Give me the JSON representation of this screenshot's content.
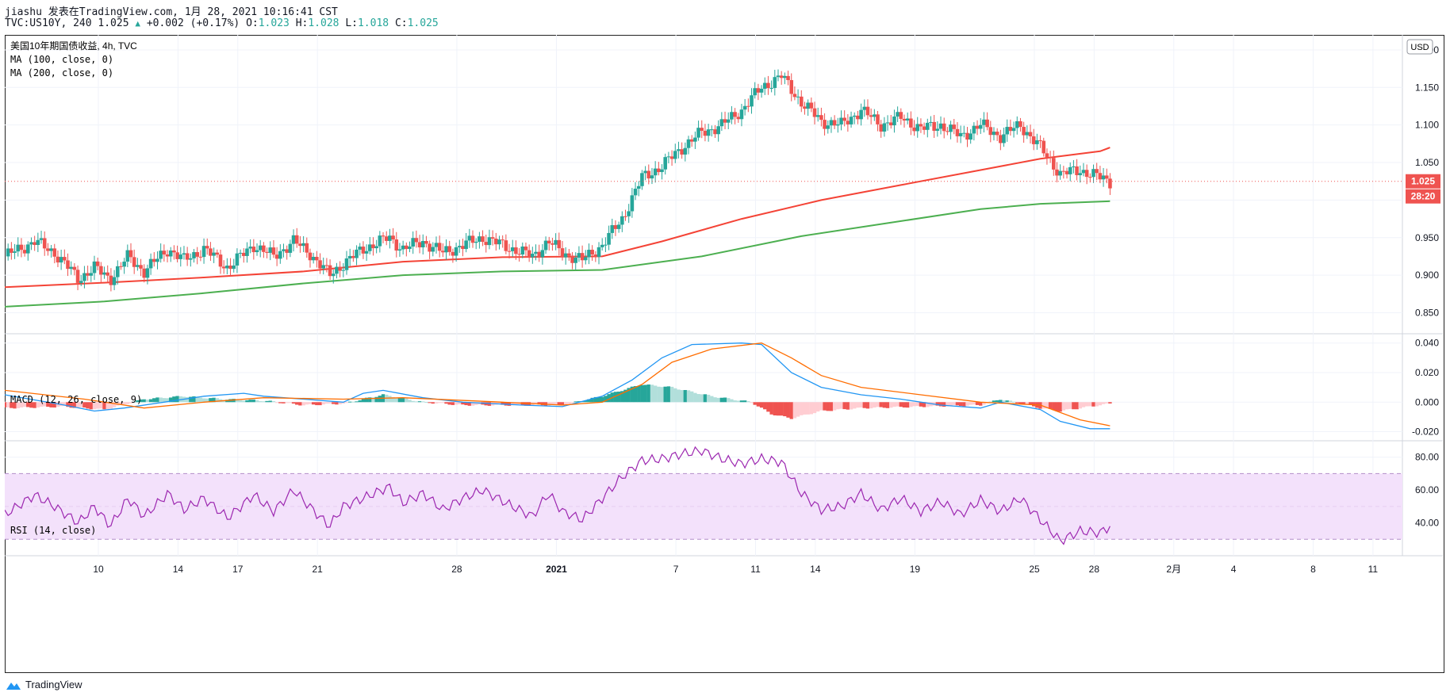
{
  "header": {
    "publish_line": "jiashu 发表在TradingView.com, 1月 28, 2021 10:16:41 CST",
    "symbol_prefix": "TVC:US10Y, 240 1.025",
    "change": "+0.002 (+0.17%)",
    "o_label": "O:",
    "o_value": "1.023",
    "h_label": "H:",
    "h_value": "1.028",
    "l_label": "L:",
    "l_value": "1.018",
    "c_label": "C:",
    "c_value": "1.025"
  },
  "legend": {
    "title": "美国10年期国债收益, 4h, TVC",
    "ma100": "MA (100, close, 0)",
    "ma200": "MA (200, close, 0)",
    "macd": "MACD (12, 26, close, 9)",
    "rsi": "RSI (14, close)"
  },
  "currency": "USD",
  "price_badge": "1.025",
  "countdown_badge": "28:20",
  "footer": {
    "brand": "TradingView"
  },
  "colors": {
    "up": "#26a69a",
    "down": "#ef5350",
    "ma100": "#f44336",
    "ma200": "#4caf50",
    "macd_line": "#2196f3",
    "signal_line": "#ff6d00",
    "rsi": "#9c27b0",
    "rsi_band": "#f3e1fb",
    "grid": "#f0f3fa"
  },
  "chart_data": [
    {
      "type": "candlestick",
      "title": "美国10年期国债收益, 4h, TVC",
      "y_ticks": [
        "0.850",
        "0.900",
        "0.950",
        "1.000",
        "1.050",
        "1.100",
        "1.150",
        "1.200"
      ],
      "ylim": [
        0.822,
        1.22
      ],
      "x_ticks": [
        {
          "label": "10",
          "t": 9.7
        },
        {
          "label": "14",
          "t": 13.7
        },
        {
          "label": "17",
          "t": 16.7
        },
        {
          "label": "21",
          "t": 20.7
        },
        {
          "label": "28",
          "t": 27.7
        },
        {
          "label": "2021",
          "t": 32.7
        },
        {
          "label": "7",
          "t": 38.7
        },
        {
          "label": "11",
          "t": 42.7
        },
        {
          "label": "14",
          "t": 45.7
        },
        {
          "label": "19",
          "t": 50.7
        },
        {
          "label": "25",
          "t": 56.7
        },
        {
          "label": "28",
          "t": 59.7
        },
        {
          "label": "2月",
          "t": 63.7
        },
        {
          "label": "4",
          "t": 66.7
        },
        {
          "label": "8",
          "t": 70.7
        },
        {
          "label": "11",
          "t": 73.7
        }
      ],
      "xlim": [
        5.0,
        75.1
      ],
      "close_waypoints": [
        [
          5.0,
          0.925
        ],
        [
          6.5,
          0.945
        ],
        [
          7.5,
          0.93
        ],
        [
          8.7,
          0.895
        ],
        [
          9.5,
          0.91
        ],
        [
          10.3,
          0.895
        ],
        [
          11.2,
          0.925
        ],
        [
          12.0,
          0.905
        ],
        [
          13.2,
          0.935
        ],
        [
          14.0,
          0.92
        ],
        [
          15.0,
          0.935
        ],
        [
          16.2,
          0.91
        ],
        [
          17.5,
          0.94
        ],
        [
          18.5,
          0.925
        ],
        [
          19.5,
          0.945
        ],
        [
          20.3,
          0.93
        ],
        [
          21.3,
          0.9
        ],
        [
          22.0,
          0.915
        ],
        [
          23.0,
          0.935
        ],
        [
          24.3,
          0.95
        ],
        [
          25.0,
          0.935
        ],
        [
          26.0,
          0.945
        ],
        [
          27.0,
          0.93
        ],
        [
          28.0,
          0.94
        ],
        [
          29.0,
          0.95
        ],
        [
          30.5,
          0.935
        ],
        [
          31.5,
          0.925
        ],
        [
          32.3,
          0.945
        ],
        [
          33.0,
          0.93
        ],
        [
          34.0,
          0.92
        ],
        [
          35.0,
          0.94
        ],
        [
          36.0,
          0.975
        ],
        [
          37.0,
          1.03
        ],
        [
          38.0,
          1.045
        ],
        [
          39.0,
          1.07
        ],
        [
          40.0,
          1.09
        ],
        [
          41.0,
          1.1
        ],
        [
          42.0,
          1.12
        ],
        [
          43.0,
          1.15
        ],
        [
          44.0,
          1.165
        ],
        [
          45.0,
          1.13
        ],
        [
          46.0,
          1.105
        ],
        [
          47.0,
          1.1
        ],
        [
          48.0,
          1.12
        ],
        [
          49.0,
          1.1
        ],
        [
          50.0,
          1.11
        ],
        [
          51.0,
          1.095
        ],
        [
          52.0,
          1.1
        ],
        [
          53.0,
          1.085
        ],
        [
          54.0,
          1.1
        ],
        [
          55.0,
          1.085
        ],
        [
          56.0,
          1.1
        ],
        [
          57.0,
          1.07
        ],
        [
          58.0,
          1.035
        ],
        [
          59.0,
          1.04
        ],
        [
          60.0,
          1.03
        ],
        [
          60.5,
          1.025
        ]
      ],
      "ma100": [
        [
          5.0,
          0.884
        ],
        [
          10.0,
          0.89
        ],
        [
          15.0,
          0.897
        ],
        [
          20.0,
          0.905
        ],
        [
          25.0,
          0.918
        ],
        [
          30.0,
          0.924
        ],
        [
          35.0,
          0.925
        ],
        [
          38.0,
          0.945
        ],
        [
          42.0,
          0.975
        ],
        [
          46.0,
          1.0
        ],
        [
          50.0,
          1.02
        ],
        [
          54.0,
          1.04
        ],
        [
          57.0,
          1.055
        ],
        [
          60.0,
          1.065
        ],
        [
          60.5,
          1.07
        ]
      ],
      "ma200": [
        [
          5.0,
          0.858
        ],
        [
          10.0,
          0.865
        ],
        [
          15.0,
          0.876
        ],
        [
          20.0,
          0.889
        ],
        [
          25.0,
          0.9
        ],
        [
          30.0,
          0.905
        ],
        [
          35.0,
          0.907
        ],
        [
          40.0,
          0.925
        ],
        [
          45.0,
          0.952
        ],
        [
          50.0,
          0.972
        ],
        [
          54.0,
          0.988
        ],
        [
          57.0,
          0.995
        ],
        [
          60.5,
          0.9985
        ]
      ],
      "last_price": 1.025
    },
    {
      "type": "macd",
      "title": "MACD (12, 26, close, 9)",
      "y_ticks": [
        "0.040",
        "0.020",
        "0.000",
        "-0.020"
      ],
      "ylim": [
        -0.024,
        0.042
      ],
      "macd": [
        [
          5.0,
          0.005
        ],
        [
          8.0,
          -0.002
        ],
        [
          9.5,
          -0.006
        ],
        [
          11.0,
          -0.004
        ],
        [
          13.0,
          0.0
        ],
        [
          15.0,
          0.004
        ],
        [
          17.0,
          0.006
        ],
        [
          18.0,
          0.004
        ],
        [
          20.0,
          0.002
        ],
        [
          22.0,
          0.0
        ],
        [
          23.0,
          0.006
        ],
        [
          24.0,
          0.008
        ],
        [
          26.0,
          0.003
        ],
        [
          28.0,
          0.0
        ],
        [
          31.0,
          -0.002
        ],
        [
          33.0,
          -0.003
        ],
        [
          35.0,
          0.004
        ],
        [
          36.5,
          0.015
        ],
        [
          38.0,
          0.03
        ],
        [
          39.5,
          0.039
        ],
        [
          42.0,
          0.04
        ],
        [
          43.0,
          0.039
        ],
        [
          44.5,
          0.02
        ],
        [
          46.0,
          0.01
        ],
        [
          48.0,
          0.005
        ],
        [
          50.0,
          0.002
        ],
        [
          52.0,
          -0.002
        ],
        [
          54.0,
          -0.004
        ],
        [
          55.0,
          0.0
        ],
        [
          57.0,
          -0.005
        ],
        [
          58.0,
          -0.013
        ],
        [
          59.5,
          -0.018
        ],
        [
          60.5,
          -0.018
        ]
      ],
      "signal": [
        [
          5.0,
          0.008
        ],
        [
          9.0,
          0.002
        ],
        [
          12.0,
          -0.004
        ],
        [
          15.0,
          0.0
        ],
        [
          18.0,
          0.003
        ],
        [
          22.0,
          0.002
        ],
        [
          25.0,
          0.003
        ],
        [
          30.0,
          0.0
        ],
        [
          33.0,
          -0.002
        ],
        [
          35.0,
          0.0
        ],
        [
          37.0,
          0.012
        ],
        [
          38.5,
          0.027
        ],
        [
          40.5,
          0.036
        ],
        [
          43.0,
          0.04
        ],
        [
          44.5,
          0.03
        ],
        [
          46.0,
          0.018
        ],
        [
          48.0,
          0.01
        ],
        [
          51.0,
          0.005
        ],
        [
          54.0,
          0.0
        ],
        [
          57.0,
          -0.002
        ],
        [
          59.0,
          -0.012
        ],
        [
          60.5,
          -0.016
        ]
      ],
      "hist": [
        [
          5.0,
          -0.004
        ],
        [
          8.0,
          -0.003
        ],
        [
          10.0,
          -0.005
        ],
        [
          12.0,
          0.002
        ],
        [
          14.0,
          0.004
        ],
        [
          16.0,
          0.002
        ],
        [
          18.0,
          0.001
        ],
        [
          20.0,
          -0.002
        ],
        [
          22.0,
          -0.001
        ],
        [
          24.0,
          0.005
        ],
        [
          26.0,
          0.0
        ],
        [
          28.0,
          -0.002
        ],
        [
          31.0,
          -0.002
        ],
        [
          33.0,
          -0.002
        ],
        [
          35.0,
          0.004
        ],
        [
          37.0,
          0.012
        ],
        [
          38.5,
          0.01
        ],
        [
          40.5,
          0.004
        ],
        [
          42.5,
          0.0
        ],
        [
          43.5,
          -0.008
        ],
        [
          44.5,
          -0.011
        ],
        [
          46.0,
          -0.006
        ],
        [
          48.0,
          -0.004
        ],
        [
          51.0,
          -0.003
        ],
        [
          54.0,
          -0.002
        ],
        [
          55.0,
          0.002
        ],
        [
          57.0,
          -0.004
        ],
        [
          58.0,
          -0.006
        ],
        [
          59.5,
          -0.003
        ],
        [
          60.5,
          -0.001
        ]
      ]
    },
    {
      "type": "line",
      "title": "RSI (14, close)",
      "y_ticks": [
        "80.00",
        "60.00",
        "40.00"
      ],
      "ylim": [
        20,
        90
      ],
      "band": [
        30,
        70
      ],
      "rsi": [
        [
          5.0,
          45
        ],
        [
          6.5,
          57
        ],
        [
          7.5,
          50
        ],
        [
          8.7,
          40
        ],
        [
          9.5,
          50
        ],
        [
          10.3,
          38
        ],
        [
          11.2,
          55
        ],
        [
          12.0,
          44
        ],
        [
          13.2,
          58
        ],
        [
          14.0,
          48
        ],
        [
          15.0,
          55
        ],
        [
          16.2,
          43
        ],
        [
          17.5,
          57
        ],
        [
          18.5,
          47
        ],
        [
          19.5,
          60
        ],
        [
          20.3,
          50
        ],
        [
          21.3,
          38
        ],
        [
          22.0,
          50
        ],
        [
          23.0,
          55
        ],
        [
          24.3,
          62
        ],
        [
          25.0,
          52
        ],
        [
          26.0,
          58
        ],
        [
          27.0,
          48
        ],
        [
          28.0,
          55
        ],
        [
          29.0,
          60
        ],
        [
          30.5,
          50
        ],
        [
          31.5,
          44
        ],
        [
          32.3,
          58
        ],
        [
          33.0,
          47
        ],
        [
          34.0,
          42
        ],
        [
          35.0,
          55
        ],
        [
          36.0,
          68
        ],
        [
          37.0,
          78
        ],
        [
          38.0,
          79
        ],
        [
          39.0,
          82
        ],
        [
          40.0,
          84
        ],
        [
          41.0,
          79
        ],
        [
          42.0,
          76
        ],
        [
          43.0,
          79
        ],
        [
          44.0,
          77
        ],
        [
          45.0,
          58
        ],
        [
          46.0,
          48
        ],
        [
          47.0,
          50
        ],
        [
          48.0,
          58
        ],
        [
          49.0,
          48
        ],
        [
          50.0,
          55
        ],
        [
          51.0,
          47
        ],
        [
          52.0,
          53
        ],
        [
          53.0,
          45
        ],
        [
          54.0,
          54
        ],
        [
          55.0,
          47
        ],
        [
          56.0,
          55
        ],
        [
          57.0,
          42
        ],
        [
          58.0,
          29
        ],
        [
          59.0,
          35
        ],
        [
          60.0,
          34
        ],
        [
          60.5,
          38
        ]
      ]
    }
  ]
}
